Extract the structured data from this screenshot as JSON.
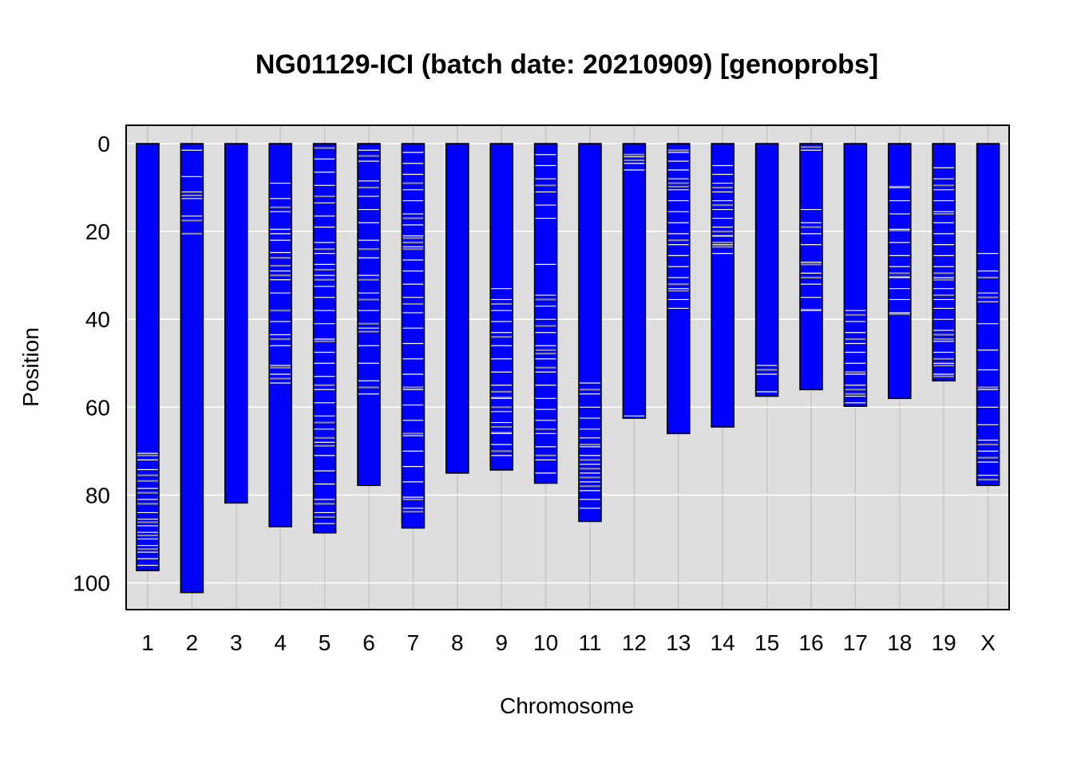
{
  "chart_data": {
    "type": "heatmap",
    "title": "NG01129-ICI (batch date: 20210909) [genoprobs]",
    "xlabel": "Chromosome",
    "ylabel": "Position",
    "ylim": [
      0,
      105
    ],
    "y_reversed": true,
    "grid": true,
    "yticks": [
      0,
      20,
      40,
      60,
      80,
      100
    ],
    "colors": {
      "chromosome_fill": "#0000ff",
      "chromosome_border": "#000000",
      "panel_background": "#dedede",
      "grid_major": "#ffffff",
      "grid_minor": "#c4c4c4",
      "marker_high": "#ffffff",
      "marker_mid": "#8a8a8a"
    },
    "chromosomes": [
      {
        "name": "1",
        "length": 97.2,
        "markers_white": [
          70.5,
          72,
          74.2,
          78.5,
          81,
          84,
          85.5,
          87,
          88.5,
          90,
          91.5,
          93,
          94.5,
          96
        ],
        "markers_gray": [
          71,
          75.5,
          76.8,
          79.5,
          82,
          86.2,
          89.2,
          92.3
        ]
      },
      {
        "name": "2",
        "length": 102.2,
        "markers_white": [
          1.5,
          7.5,
          11,
          12.5,
          16.5
        ],
        "markers_gray": [
          11.8,
          17.5,
          20.5
        ]
      },
      {
        "name": "3",
        "length": 81.8,
        "markers_white": [],
        "markers_gray": []
      },
      {
        "name": "4",
        "length": 87.2,
        "markers_white": [
          9,
          12.5,
          15.5,
          19.5,
          20.5,
          22,
          24.8,
          29,
          31,
          34,
          40.5,
          43.5,
          46,
          50.5,
          52.5,
          54.5
        ],
        "markers_gray": [
          14.5,
          26,
          27.8,
          30,
          38,
          44.5,
          51,
          53.5
        ]
      },
      {
        "name": "5",
        "length": 88.6,
        "markers_white": [
          3.5,
          6.5,
          9.5,
          13.5,
          16.5,
          19,
          22.5,
          25,
          27.5,
          30,
          32.5,
          35,
          38,
          41,
          44.5,
          47.5,
          50,
          53,
          56,
          59,
          62,
          65,
          68,
          71,
          74.5,
          77.5,
          81,
          84,
          86.5
        ],
        "markers_gray": [
          1,
          12,
          24,
          28.7,
          31,
          45,
          55,
          63.5,
          67,
          68.8,
          82,
          85
        ]
      },
      {
        "name": "6",
        "length": 77.8,
        "markers_white": [
          1.5,
          4,
          8.5,
          12,
          15,
          18,
          22,
          26,
          30,
          34,
          38,
          42,
          46,
          50,
          54,
          57
        ],
        "markers_gray": [
          2.8,
          10,
          24,
          31,
          35.5,
          41,
          42.8,
          55.5
        ]
      },
      {
        "name": "7",
        "length": 87.5,
        "markers_white": [
          2,
          4.5,
          7,
          10.5,
          13,
          16,
          18.5,
          21,
          23.5,
          26.5,
          29,
          32,
          35,
          38.5,
          42,
          45.5,
          49,
          52.5,
          56,
          59.5,
          63,
          66.5,
          70,
          73.5,
          77,
          80.5,
          83
        ],
        "markers_gray": [
          9,
          17,
          21.5,
          22.5,
          24,
          36.5,
          55.5,
          66,
          81,
          83.8
        ]
      },
      {
        "name": "8",
        "length": 75.0,
        "markers_white": [],
        "markers_gray": []
      },
      {
        "name": "9",
        "length": 74.3,
        "markers_white": [
          33,
          35.5,
          38,
          40.5,
          43,
          46,
          49,
          52,
          55,
          58,
          61,
          63.5,
          66,
          68.5,
          71
        ],
        "markers_gray": [
          36.5,
          44,
          56.5,
          57.8,
          60,
          64.5,
          65.8,
          70
        ]
      },
      {
        "name": "10",
        "length": 77.3,
        "markers_white": [
          2.5,
          5,
          8,
          11,
          14,
          17,
          27.5,
          34.5,
          37,
          40,
          43,
          46,
          49,
          52,
          55,
          58,
          60.5,
          63,
          66,
          69,
          72,
          75
        ],
        "markers_gray": [
          9.5,
          35.5,
          41.5,
          47,
          47.8,
          51,
          65,
          71
        ]
      },
      {
        "name": "11",
        "length": 86.0,
        "markers_white": [
          54.5,
          57,
          60,
          62.5,
          65,
          67,
          69,
          71,
          73,
          75,
          77,
          79,
          81,
          83
        ],
        "markers_gray": [
          56,
          68.5,
          72,
          74,
          76,
          78
        ]
      },
      {
        "name": "12",
        "length": 62.5,
        "markers_white": [
          3,
          4.5,
          6,
          62
        ],
        "markers_gray": [
          2.5,
          3.8
        ]
      },
      {
        "name": "13",
        "length": 66.0,
        "markers_white": [
          2,
          4,
          6,
          8,
          10.5,
          13,
          15.5,
          18,
          20.5,
          23,
          25.5,
          28,
          30.5,
          33,
          35.5,
          37.5
        ],
        "markers_gray": [
          1.5,
          9,
          9.8,
          22,
          32,
          33.5
        ]
      },
      {
        "name": "14",
        "length": 64.5,
        "markers_white": [
          5,
          7,
          9,
          11,
          13,
          15,
          17,
          19,
          21,
          23,
          25
        ],
        "markers_gray": [
          10,
          14,
          20,
          21,
          22.5,
          23.5
        ]
      },
      {
        "name": "15",
        "length": 57.5,
        "markers_white": [
          50.5,
          52.5,
          56.5
        ],
        "markers_gray": [
          51.5
        ]
      },
      {
        "name": "16",
        "length": 56.0,
        "markers_white": [
          1.5,
          15,
          18,
          20.5,
          23,
          27,
          29.5,
          32,
          35,
          38
        ],
        "markers_gray": [
          0.8,
          19,
          27.5,
          30.5,
          37.8
        ]
      },
      {
        "name": "17",
        "length": 59.8,
        "markers_white": [
          38,
          40.5,
          43,
          45.5,
          47.5,
          50,
          52.5,
          55,
          57.5,
          59
        ],
        "markers_gray": [
          39,
          44.5,
          52,
          56,
          57
        ]
      },
      {
        "name": "18",
        "length": 58.0,
        "markers_white": [
          10,
          13,
          16,
          19.5,
          22.5,
          25.5,
          28,
          30.5,
          33,
          35.5,
          38.5
        ],
        "markers_gray": [
          9.8,
          19.8,
          29.5,
          30.3,
          38.8
        ]
      },
      {
        "name": "19",
        "length": 54.0,
        "markers_white": [
          5.5,
          8,
          10.5,
          13,
          15.5,
          18,
          20.5,
          23,
          25.5,
          28,
          30.5,
          33,
          35.5,
          37.5,
          40,
          42.5,
          45,
          47.5,
          50,
          52.5
        ],
        "markers_gray": [
          9.5,
          16,
          29.5,
          31,
          34.5,
          43.5,
          44.5,
          49,
          50.5,
          53
        ]
      },
      {
        "name": "X",
        "length": 77.8,
        "markers_white": [
          25,
          29,
          34,
          36,
          41,
          47,
          51.5,
          56,
          60,
          64,
          67.5,
          70,
          72.5,
          75.5
        ],
        "markers_gray": [
          30.5,
          35,
          55.5,
          68.5,
          71.5,
          76.5
        ]
      }
    ]
  }
}
